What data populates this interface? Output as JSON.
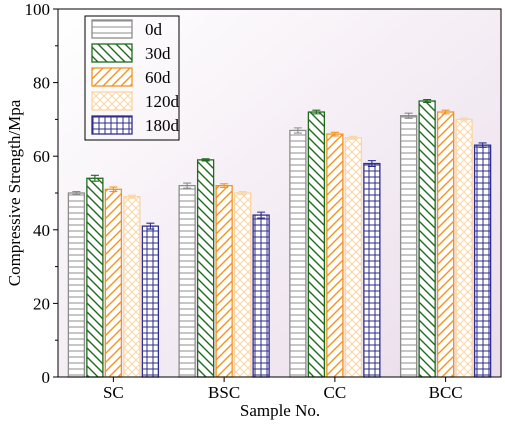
{
  "chart_data": {
    "type": "bar",
    "title": "",
    "xlabel": "Sample No.",
    "ylabel": "Compressive Strength/Mpa",
    "ylim": [
      0,
      100
    ],
    "yticks": [
      0,
      20,
      40,
      60,
      80,
      100
    ],
    "categories": [
      "SC",
      "BSC",
      "CC",
      "BCC"
    ],
    "grid": false,
    "legend_position": "top-left",
    "background": "gradient white to light pink",
    "series": [
      {
        "name": "0d",
        "color": "#8c8c8c",
        "pattern": "horizontal-lines",
        "values": [
          50,
          52,
          67,
          71
        ],
        "errors": [
          0.4,
          0.7,
          0.7,
          0.7
        ]
      },
      {
        "name": "30d",
        "color": "#1e6b1e",
        "pattern": "diagonal-back",
        "values": [
          54,
          59,
          72,
          75
        ],
        "errors": [
          0.8,
          0.3,
          0.5,
          0.4
        ]
      },
      {
        "name": "60d",
        "color": "#f5921e",
        "pattern": "diagonal-forward",
        "values": [
          51,
          52,
          66,
          72
        ],
        "errors": [
          0.6,
          0.5,
          0.5,
          0.5
        ]
      },
      {
        "name": "120d",
        "color": "#fbd5a3",
        "pattern": "cross-hatch",
        "values": [
          49,
          50,
          65,
          70
        ],
        "errors": [
          0.4,
          0.4,
          0.4,
          0.4
        ]
      },
      {
        "name": "180d",
        "color": "#2e2e8e",
        "pattern": "grid",
        "values": [
          41,
          44,
          58,
          63
        ],
        "errors": [
          0.8,
          0.8,
          0.8,
          0.6
        ]
      }
    ]
  }
}
